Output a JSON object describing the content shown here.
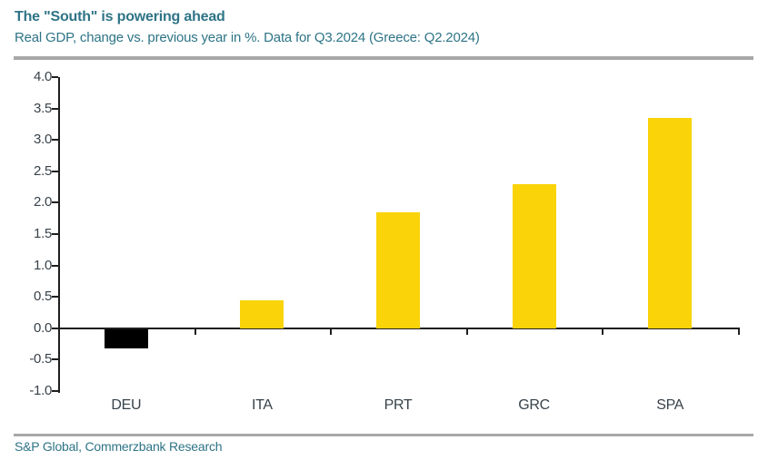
{
  "header": {
    "title": "The \"South\" is powering ahead",
    "subtitle": "Real GDP, change vs. previous year in %. Data for Q3.2024 (Greece: Q2.2024)"
  },
  "footer": {
    "source": "S&P Global, Commerzbank Research"
  },
  "colors": {
    "teal_text": "#2e7486",
    "axis_text": "#37424a",
    "axis_line": "#1f1f1f",
    "rule_gray": "#a8a8a8",
    "bar_yellow": "#fad308",
    "bar_black": "#000000",
    "background": "#ffffff"
  },
  "chart_data": {
    "type": "bar",
    "title": "The \"South\" is powering ahead",
    "subtitle": "Real GDP, change vs. previous year in %. Data for Q3.2024 (Greece: Q2.2024)",
    "categories": [
      "DEU",
      "ITA",
      "PRT",
      "GRC",
      "SPA"
    ],
    "values": [
      -0.3,
      0.45,
      1.85,
      2.3,
      3.35
    ],
    "bar_colors": [
      "#000000",
      "#fad308",
      "#fad308",
      "#fad308",
      "#fad308"
    ],
    "xlabel": "",
    "ylabel": "",
    "ylim": [
      -1.0,
      4.0
    ],
    "ytick_step": 0.5,
    "ytick_labels": [
      "4.0",
      "3.5",
      "3.0",
      "2.5",
      "2.0",
      "1.5",
      "1.0",
      "0.5",
      "0.0",
      "-0.5",
      "-1.0"
    ],
    "grid": false,
    "legend": false,
    "source": "S&P Global, Commerzbank Research"
  }
}
